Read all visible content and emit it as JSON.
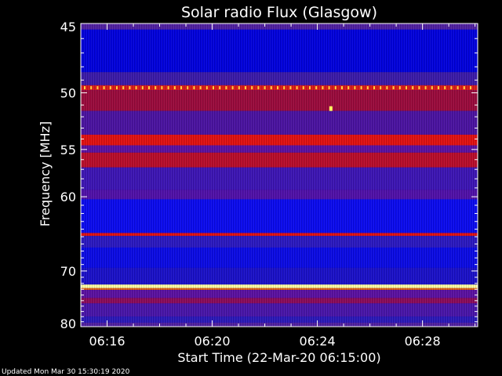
{
  "chart_data": {
    "type": "heatmap",
    "title": "Solar radio Flux (Glasgow)",
    "xlabel": "Start Time (22-Mar-20 06:15:00)",
    "ylabel": "Frequency [MHz]",
    "x_ticks": [
      "06:16",
      "06:20",
      "06:24",
      "06:28"
    ],
    "x_tick_minutes": [
      1,
      5,
      9,
      13
    ],
    "xlim_minutes": [
      0,
      15.1
    ],
    "y_ticks": [
      45,
      50,
      55,
      60,
      70,
      80
    ],
    "ylim": [
      45,
      80
    ],
    "y_scale": "reciprocal",
    "colormap": [
      "#0000b4",
      "#3c14b4",
      "#9b00c8",
      "#cc0000",
      "#ff3300",
      "#ffff80"
    ],
    "bands": [
      {
        "f0": 45.0,
        "f1": 45.4,
        "color": "#5020a0"
      },
      {
        "f0": 45.4,
        "f1": 48.4,
        "color": "#0000dc"
      },
      {
        "f0": 48.4,
        "f1": 49.4,
        "color": "#3a1aa8"
      },
      {
        "f0": 49.4,
        "f1": 49.8,
        "color": "#d81a1a"
      },
      {
        "f0": 49.8,
        "f1": 51.5,
        "color": "#9a0a3c"
      },
      {
        "f0": 51.5,
        "f1": 53.6,
        "color": "#4a12a0"
      },
      {
        "f0": 53.6,
        "f1": 54.6,
        "color": "#e01010"
      },
      {
        "f0": 54.6,
        "f1": 55.3,
        "color": "#5a10a0"
      },
      {
        "f0": 55.3,
        "f1": 56.8,
        "color": "#b80c2a"
      },
      {
        "f0": 56.8,
        "f1": 59.2,
        "color": "#3c14b4"
      },
      {
        "f0": 59.2,
        "f1": 60.3,
        "color": "#5010a8"
      },
      {
        "f0": 60.3,
        "f1": 64.5,
        "color": "#0a0aee"
      },
      {
        "f0": 64.5,
        "f1": 64.9,
        "color": "#e01010"
      },
      {
        "f0": 64.9,
        "f1": 66.5,
        "color": "#2a18c0"
      },
      {
        "f0": 66.5,
        "f1": 69.5,
        "color": "#0a0ae4"
      },
      {
        "f0": 69.5,
        "f1": 72.2,
        "color": "#1a10c8"
      },
      {
        "f0": 72.2,
        "f1": 72.8,
        "color": "#ffffa0"
      },
      {
        "f0": 72.8,
        "f1": 73.1,
        "color": "#e06010"
      },
      {
        "f0": 73.1,
        "f1": 74.5,
        "color": "#5a10a0"
      },
      {
        "f0": 74.5,
        "f1": 75.5,
        "color": "#8a0a5a"
      },
      {
        "f0": 75.5,
        "f1": 78.0,
        "color": "#4814a8"
      },
      {
        "f0": 78.0,
        "f1": 79.2,
        "color": "#2a18b8"
      },
      {
        "f0": 79.2,
        "f1": 80.0,
        "color": "#5020a0"
      }
    ],
    "spike_line_mhz": 49.6,
    "burst": {
      "minute": 9.5,
      "mhz": 51.3,
      "color": "#ffff60"
    }
  },
  "footer": {
    "updated": "Updated Mon Mar 30 15:30:19 2020"
  }
}
